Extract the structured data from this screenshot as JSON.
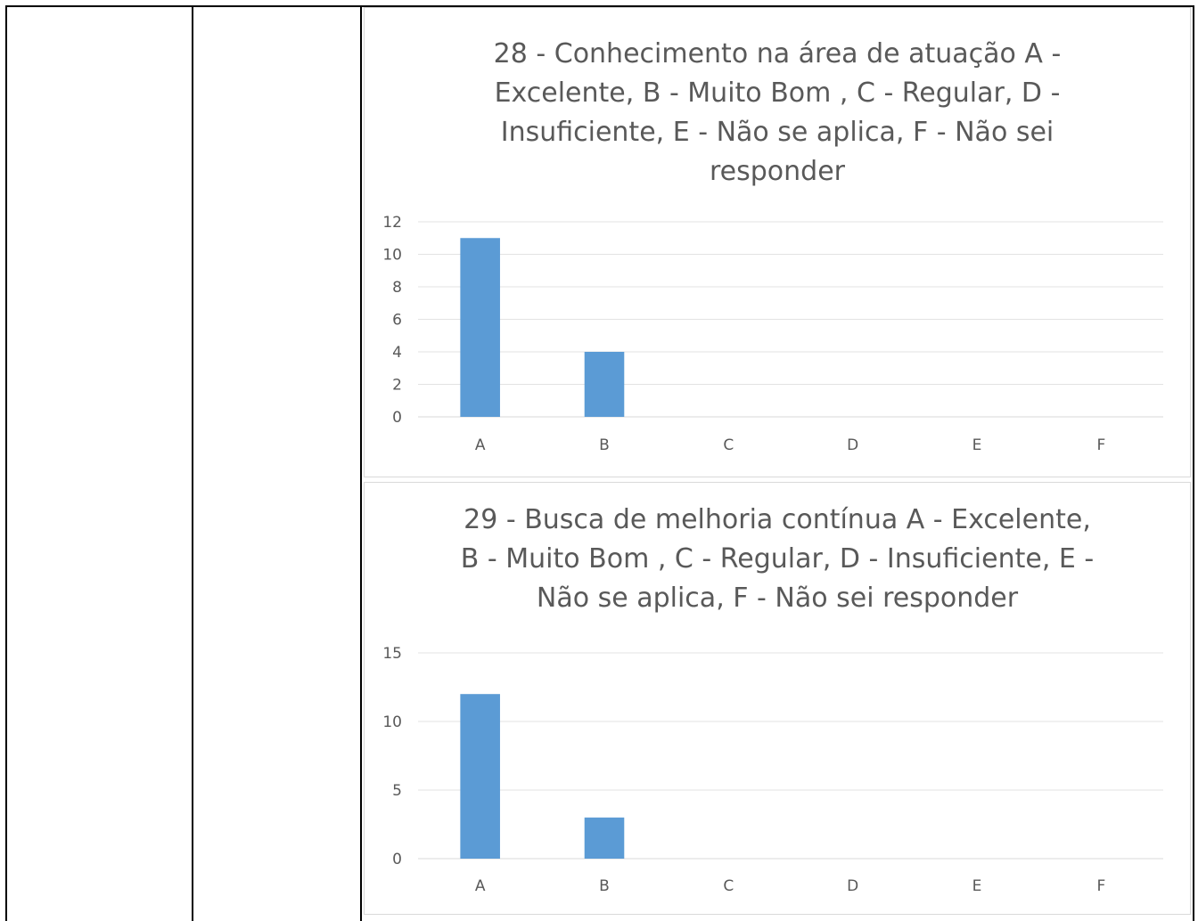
{
  "chart_data": [
    {
      "type": "bar",
      "title": "28 - Conhecimento na área de atuação A -\nExcelente, B - Muito Bom , C - Regular, D -\nInsuficiente, E - Não se aplica, F - Não sei\nresponder",
      "categories": [
        "A",
        "B",
        "C",
        "D",
        "E",
        "F"
      ],
      "values": [
        11,
        4,
        0,
        0,
        0,
        0
      ],
      "yticks": [
        0,
        2,
        4,
        6,
        8,
        10,
        12
      ],
      "ylim": [
        0,
        12
      ],
      "grid": true,
      "bar_color": "#5b9bd5"
    },
    {
      "type": "bar",
      "title": "29 - Busca de melhoria contínua A - Excelente,\nB - Muito Bom , C - Regular, D - Insuficiente, E -\nNão se aplica, F - Não sei responder",
      "categories": [
        "A",
        "B",
        "C",
        "D",
        "E",
        "F"
      ],
      "values": [
        12,
        3,
        0,
        0,
        0,
        0
      ],
      "yticks": [
        0,
        5,
        10,
        15
      ],
      "ylim": [
        0,
        15
      ],
      "grid": true,
      "bar_color": "#5b9bd5"
    }
  ]
}
